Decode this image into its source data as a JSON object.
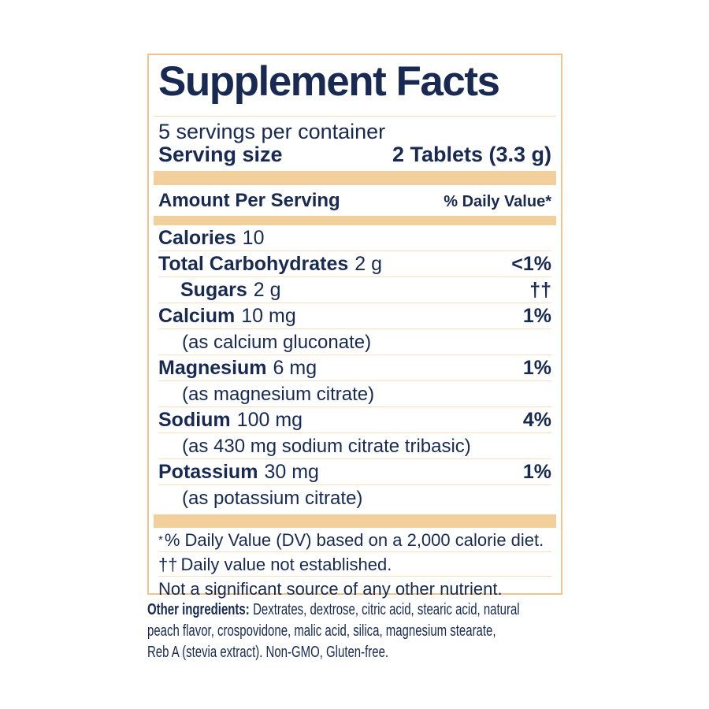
{
  "label": {
    "title": "Supplement Facts",
    "servings_per_container": "5 servings per container",
    "serving_size": {
      "label": "Serving size",
      "value": "2 Tablets (3.3 g)"
    },
    "column_headers": {
      "left": "Amount Per Serving",
      "right": "% Daily Value*"
    },
    "rows": [
      {
        "name": "Calories",
        "amount": "10",
        "dv": ""
      },
      {
        "name": "Total Carbohydrates",
        "amount": "2 g",
        "dv": "<1%"
      },
      {
        "name": "Sugars",
        "amount": "2 g",
        "dv": "††"
      },
      {
        "name": "Calcium",
        "amount": "10 mg",
        "dv": "1%"
      },
      {
        "name": "(as calcium gluconate)",
        "amount": "",
        "dv": ""
      },
      {
        "name": "Magnesium",
        "amount": "6 mg",
        "dv": "1%"
      },
      {
        "name": "(as magnesium citrate)",
        "amount": "",
        "dv": ""
      },
      {
        "name": "Sodium",
        "amount": "100 mg",
        "dv": "4%"
      },
      {
        "name": "(as 430 mg sodium citrate tribasic)",
        "amount": "",
        "dv": ""
      },
      {
        "name": "Potassium",
        "amount": "30 mg",
        "dv": "1%"
      },
      {
        "name": "(as potassium citrate)",
        "amount": "",
        "dv": ""
      }
    ],
    "footnotes": [
      {
        "marker": "*",
        "text": "% Daily Value (DV) based on a 2,000 calorie diet."
      },
      {
        "marker": "††",
        "text": "Daily value not established."
      },
      {
        "marker": "",
        "text": "Not a significant source of any other nutrient."
      }
    ]
  },
  "other_ingredients": {
    "label": "Other ingredients:",
    "line1_rest": "Dextrates, dextrose, citric acid, stearic acid, natural",
    "line2": "peach flavor, crospovidone, malic acid, silica, magnesium stearate,",
    "line3": "Reb A (stevia extract). Non-GMO, Gluten-free."
  },
  "colors": {
    "text_navy": "#182a52",
    "band_tan": "#f3cf9c",
    "border_tan": "#f0c48c",
    "divider_tan": "#f5e0bf"
  }
}
